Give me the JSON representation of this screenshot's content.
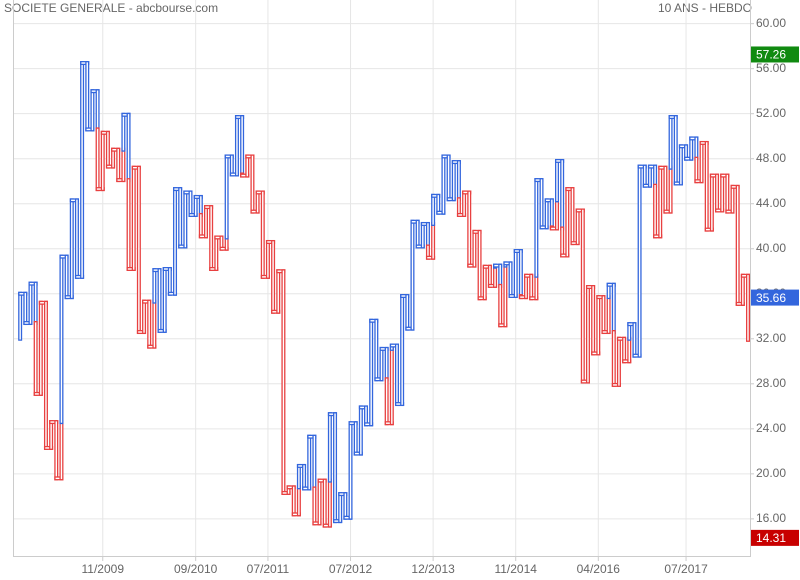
{
  "chart_data": {
    "type": "kagi",
    "title": "SOCIETE GENERALE - abcbourse.com",
    "subtitle": "10 ANS - HEBDO",
    "values": [
      32.0,
      36.0,
      33.4,
      36.9,
      27.1,
      35.2,
      22.3,
      24.6,
      19.6,
      39.3,
      35.7,
      44.3,
      37.5,
      56.5,
      50.6,
      54.0,
      45.3,
      50.3,
      47.3,
      48.8,
      46.1,
      51.9,
      38.2,
      47.2,
      32.6,
      35.3,
      31.3,
      38.1,
      32.7,
      38.2,
      36.0,
      45.3,
      40.2,
      45.0,
      43.0,
      44.6,
      41.1,
      43.7,
      38.2,
      41.0,
      40.0,
      48.2,
      46.6,
      51.7,
      46.5,
      48.2,
      43.3,
      45.0,
      37.5,
      40.6,
      34.4,
      38.0,
      18.3,
      18.8,
      16.4,
      20.7,
      18.7,
      23.3,
      15.6,
      19.4,
      15.4,
      25.3,
      15.8,
      18.2,
      16.1,
      24.5,
      21.8,
      25.9,
      24.4,
      33.6,
      28.4,
      31.1,
      24.5,
      31.4,
      26.2,
      35.8,
      32.9,
      42.4,
      40.2,
      42.2,
      39.2,
      44.7,
      43.2,
      48.2,
      44.4,
      47.7,
      43.0,
      45.0,
      38.5,
      41.5,
      35.6,
      38.4,
      36.7,
      38.5,
      33.2,
      38.7,
      35.8,
      39.8,
      35.7,
      37.6,
      35.6,
      46.1,
      41.9,
      44.3,
      41.8,
      47.8,
      39.4,
      45.3,
      40.5,
      43.4,
      28.2,
      36.6,
      30.7,
      35.7,
      32.6,
      36.8,
      27.9,
      32.0,
      30.0,
      33.3,
      30.5,
      47.3,
      45.6,
      47.3,
      41.1,
      47.2,
      43.3,
      51.7,
      45.8,
      49.1,
      48.0,
      49.8,
      46.0,
      49.4,
      41.7,
      46.5,
      43.4,
      46.5,
      43.3,
      45.5,
      35.1,
      37.6,
      31.9
    ],
    "yang_color": "#3366dd",
    "yin_color": "#e84040",
    "xlim": [
      0,
      142
    ],
    "xticks": [
      {
        "value": 17,
        "label": "11/2009"
      },
      {
        "value": 35,
        "label": "09/2010"
      },
      {
        "value": 49,
        "label": "07/2011"
      },
      {
        "value": 65,
        "label": "07/2012"
      },
      {
        "value": 81,
        "label": "12/2013"
      },
      {
        "value": 97,
        "label": "11/2014"
      },
      {
        "value": 113,
        "label": "04/2016"
      },
      {
        "value": 130,
        "label": "07/2017"
      }
    ],
    "ylim": [
      12.7,
      62.1
    ],
    "yticks": [
      {
        "value": 16,
        "label": "16.00"
      },
      {
        "value": 20,
        "label": "20.00"
      },
      {
        "value": 24,
        "label": "24.00"
      },
      {
        "value": 28,
        "label": "28.00"
      },
      {
        "value": 32,
        "label": "32.00"
      },
      {
        "value": 36,
        "label": "36.00"
      },
      {
        "value": 40,
        "label": "40.00"
      },
      {
        "value": 44,
        "label": "44.00"
      },
      {
        "value": 48,
        "label": "48.00"
      },
      {
        "value": 52,
        "label": "52.00"
      },
      {
        "value": 56,
        "label": "56.00"
      },
      {
        "value": 60,
        "label": "60.00"
      }
    ],
    "grid": true,
    "badges": [
      {
        "value": 57.26,
        "color": "#108a10"
      },
      {
        "value": 35.66,
        "color": "#3366dd"
      },
      {
        "value": 14.31,
        "color": "#c80000"
      }
    ]
  }
}
